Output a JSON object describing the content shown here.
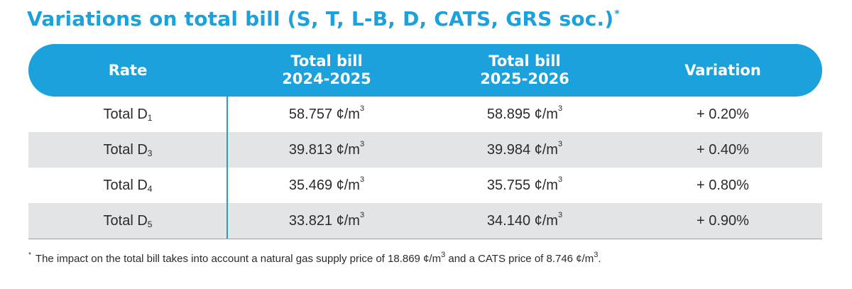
{
  "title": {
    "text": "Variations on total bill (S, T, L-B, D, CATS, GRS soc.)",
    "marker": "*"
  },
  "colors": {
    "accent": "#1ba1dc",
    "alt_row": "#e3e4e6",
    "text": "#2b2b2b"
  },
  "table": {
    "headers": {
      "rate": "Rate",
      "bill_2024_line1": "Total bill",
      "bill_2024_line2": "2024-2025",
      "bill_2025_line1": "Total bill",
      "bill_2025_line2": "2025-2026",
      "variation": "Variation"
    },
    "unit": {
      "symbol": "¢/m",
      "exponent": "3"
    },
    "rows": [
      {
        "rate": "Total D",
        "rate_sub": "1",
        "bill_2024": "58.757",
        "bill_2025": "58.895",
        "variation": "+ 0.20%"
      },
      {
        "rate": "Total D",
        "rate_sub": "3",
        "bill_2024": "39.813",
        "bill_2025": "39.984",
        "variation": "+ 0.40%"
      },
      {
        "rate": "Total D",
        "rate_sub": "4",
        "bill_2024": "35.469",
        "bill_2025": "35.755",
        "variation": "+ 0.80%"
      },
      {
        "rate": "Total D",
        "rate_sub": "5",
        "bill_2024": "33.821",
        "bill_2025": "34.140",
        "variation": "+ 0.90%"
      }
    ]
  },
  "footnote": {
    "marker": "*",
    "text_part1": "The impact on the total bill takes into account a natural gas supply price of 18.869 ¢/m",
    "exp1": "3",
    "text_part2": " and a CATS price of 8.746 ¢/m",
    "exp2": "3",
    "text_part3": "."
  }
}
